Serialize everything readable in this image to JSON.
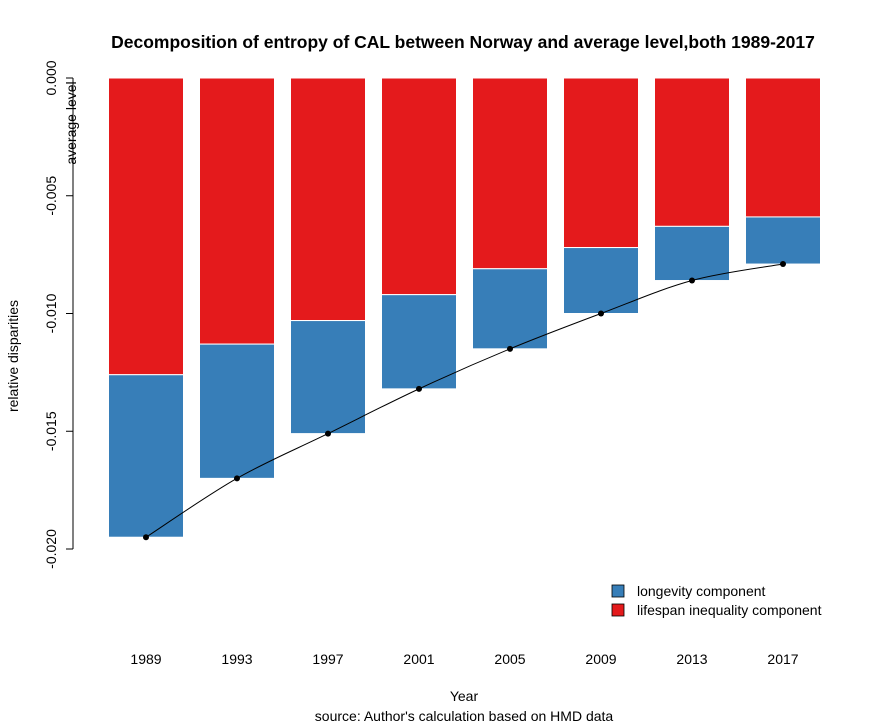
{
  "chart_data": {
    "type": "bar",
    "stacked": true,
    "title": "Decomposition of entropy of CAL between Norway and average level,both 1989-2017",
    "xlabel": "Year",
    "ylabel": "relative disparities",
    "reference_label": "average level",
    "caption": "source: Author's calculation based on HMD data",
    "categories": [
      "1989",
      "1993",
      "1997",
      "2001",
      "2005",
      "2009",
      "2013",
      "2017"
    ],
    "ylim": [
      -0.02,
      0.0
    ],
    "yticks": [
      0.0,
      -0.005,
      -0.01,
      -0.015,
      -0.02
    ],
    "ytick_labels": [
      "0.000",
      "-0.005",
      "-0.010",
      "-0.015",
      "-0.020"
    ],
    "series": [
      {
        "name": "lifespan inequality component",
        "color": "#e41a1c",
        "values": [
          -0.0126,
          -0.0113,
          -0.0103,
          -0.0092,
          -0.0081,
          -0.0072,
          -0.0063,
          -0.0059
        ]
      },
      {
        "name": "longevity component",
        "color": "#377eb8",
        "values": [
          -0.0069,
          -0.0057,
          -0.0048,
          -0.004,
          -0.0034,
          -0.0028,
          -0.0023,
          -0.002
        ]
      }
    ],
    "total_line": {
      "values": [
        -0.0195,
        -0.017,
        -0.0151,
        -0.0132,
        -0.0115,
        -0.01,
        -0.0086,
        -0.0079
      ]
    },
    "legend": {
      "position": "bottom-right",
      "entries": [
        {
          "label": "longevity component",
          "color": "#377eb8"
        },
        {
          "label": "lifespan inequality component",
          "color": "#e41a1c"
        }
      ]
    },
    "grid": false
  }
}
